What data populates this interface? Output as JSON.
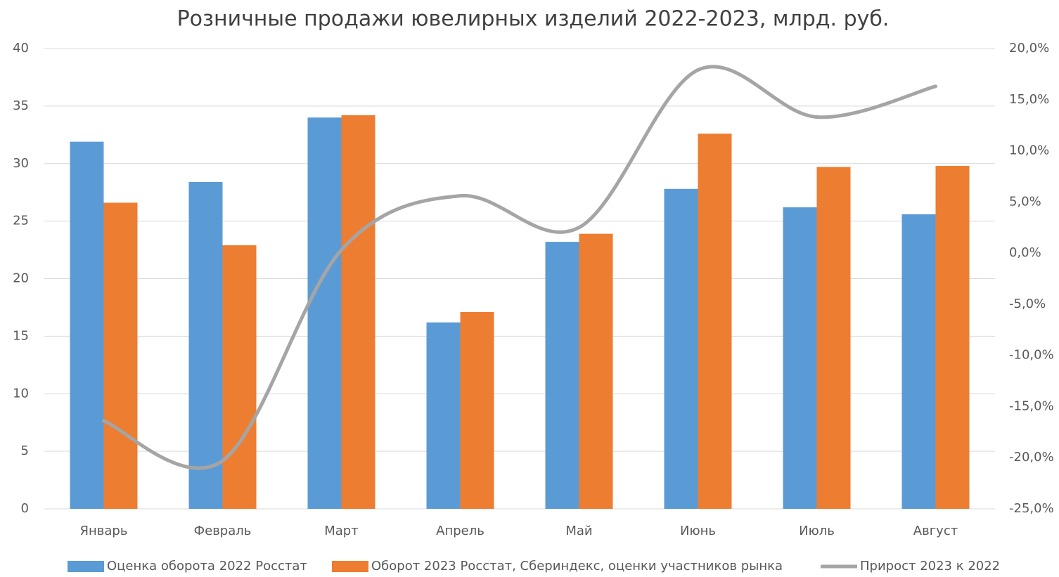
{
  "chart_data": {
    "type": "bar",
    "title": "Розничные продажи ювелирных изделий 2022-2023, млрд. руб.",
    "categories": [
      "Январь",
      "Февраль",
      "Март",
      "Апрель",
      "Май",
      "Июнь",
      "Июль",
      "Август"
    ],
    "series": [
      {
        "name": "Оценка оборота 2022 Росстат",
        "type": "bar",
        "color": "#5b9bd5",
        "values": [
          31.9,
          28.4,
          34.0,
          16.2,
          23.2,
          27.8,
          26.2,
          25.6
        ]
      },
      {
        "name": "Оборот 2023 Росстат, Сбериндекс, оценки участников рынка",
        "type": "bar",
        "color": "#ed7d31",
        "values": [
          26.6,
          22.9,
          34.2,
          17.1,
          23.9,
          32.6,
          29.7,
          29.8
        ]
      },
      {
        "name": "Прирост 2023 к 2022",
        "type": "line",
        "axis": "y2",
        "smooth": true,
        "color": "#a5a5a5",
        "values": [
          -16.4,
          -20.3,
          0.3,
          5.6,
          2.5,
          17.9,
          13.3,
          16.3
        ]
      }
    ],
    "ylim": [
      0,
      40
    ],
    "yticks": [
      0,
      5,
      10,
      15,
      20,
      25,
      30,
      35,
      40
    ],
    "y2lim": [
      -25,
      20
    ],
    "y2ticks": [
      {
        "value": -25,
        "label": "-25,0%"
      },
      {
        "value": -20,
        "label": "-20,0%"
      },
      {
        "value": -15,
        "label": "-15,0%"
      },
      {
        "value": -10,
        "label": "-10,0%"
      },
      {
        "value": -5,
        "label": "-5,0%"
      },
      {
        "value": 0,
        "label": "0,0%"
      },
      {
        "value": 5,
        "label": "5,0%"
      },
      {
        "value": 10,
        "label": "10,0%"
      },
      {
        "value": 15,
        "label": "15,0%"
      },
      {
        "value": 20,
        "label": "20,0%"
      }
    ],
    "grid": true,
    "legend": "bottom"
  }
}
